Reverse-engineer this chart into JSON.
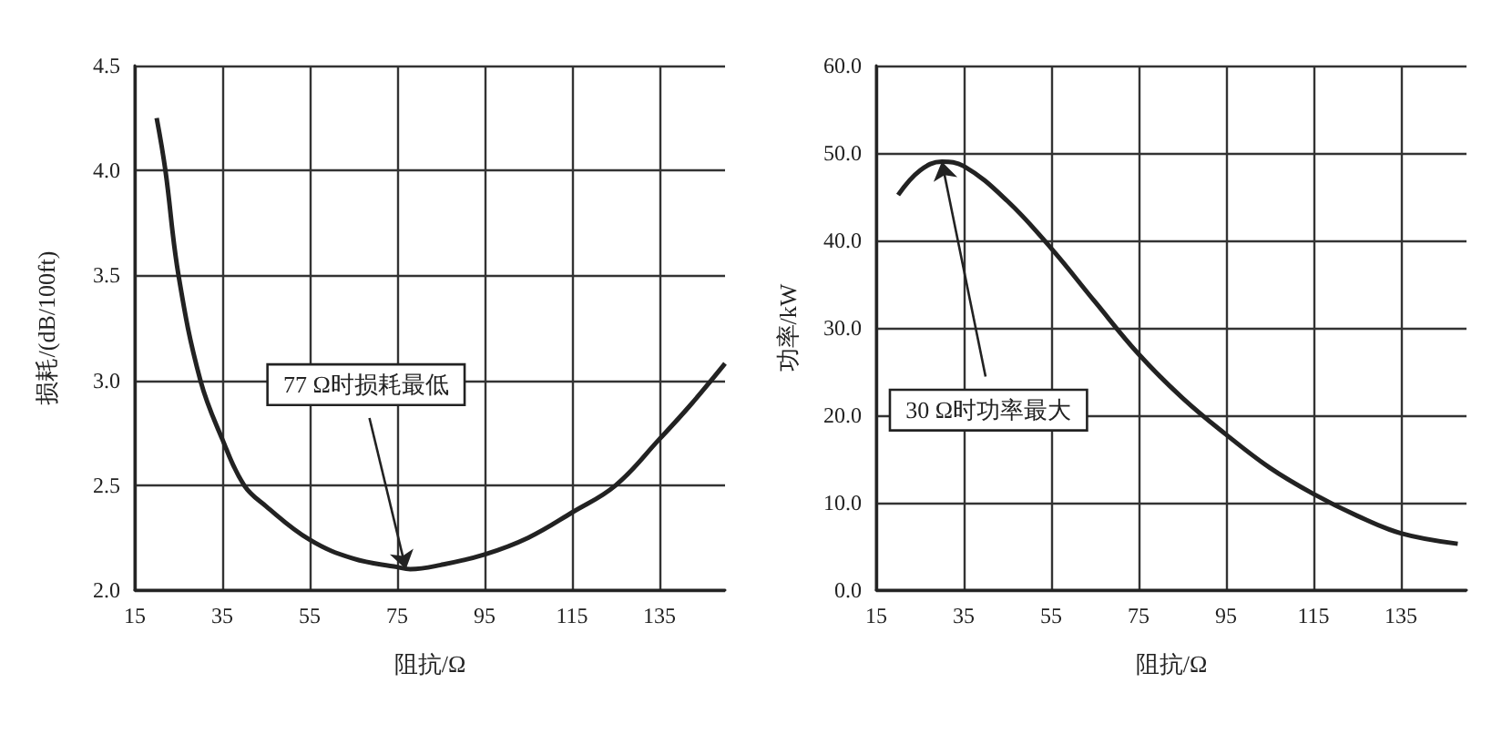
{
  "chart_data": [
    {
      "type": "line",
      "xlabel": "阻抗/Ω",
      "ylabel": "损耗/(dB/100ft)",
      "x": [
        20,
        22,
        25,
        30,
        35,
        40,
        45,
        55,
        65,
        75,
        78,
        85,
        95,
        105,
        115,
        125,
        135,
        142,
        150
      ],
      "series": [
        {
          "color": "#222222",
          "values": [
            4.25,
            4.0,
            3.5,
            3.0,
            2.72,
            2.5,
            2.4,
            2.24,
            2.15,
            2.11,
            2.1,
            2.12,
            2.17,
            2.25,
            2.37,
            2.5,
            2.72,
            2.88,
            3.08
          ]
        }
      ],
      "xlim": [
        15,
        150
      ],
      "xticks": [
        15,
        35,
        55,
        75,
        95,
        115,
        135
      ],
      "ylim": [
        2,
        4.5
      ],
      "yticks": [
        {
          "value": 2,
          "label": "2.0"
        },
        2.5,
        {
          "value": 3,
          "label": "3.0"
        },
        3.5,
        {
          "value": 4,
          "label": "4.0"
        },
        4.5
      ],
      "grid": true,
      "marker": "none",
      "line_style": "solid",
      "annotations": [
        {
          "text": "77 Ω时损耗最低",
          "x": 77,
          "y": 2.1
        }
      ]
    },
    {
      "type": "line",
      "xlabel": "阻抗/Ω",
      "ylabel": "功率/kW",
      "x": [
        20,
        25,
        30,
        35,
        45,
        55,
        65,
        75,
        85,
        95,
        105,
        115,
        125,
        135,
        148
      ],
      "series": [
        {
          "color": "#222222",
          "values": [
            45.2,
            48.0,
            49.0,
            48.5,
            44.5,
            39.1,
            33,
            27,
            22,
            17.8,
            14,
            11,
            8.5,
            6.5,
            5.3
          ]
        }
      ],
      "xlim": [
        15,
        150
      ],
      "xticks": [
        15,
        35,
        55,
        75,
        95,
        115,
        135
      ],
      "ylim": [
        0,
        60
      ],
      "yticks": [
        {
          "value": 0,
          "label": "0.0"
        },
        {
          "value": 10,
          "label": "10.0"
        },
        {
          "value": 20,
          "label": "20.0"
        },
        {
          "value": 30,
          "label": "30.0"
        },
        {
          "value": 40,
          "label": "40.0"
        },
        {
          "value": 50,
          "label": "50.0"
        },
        {
          "value": 60,
          "label": "60.0"
        }
      ],
      "grid": true,
      "marker": "none",
      "line_style": "solid",
      "annotations": [
        {
          "text": "30 Ω时功率最大",
          "x": 30,
          "y": 49
        }
      ]
    }
  ]
}
